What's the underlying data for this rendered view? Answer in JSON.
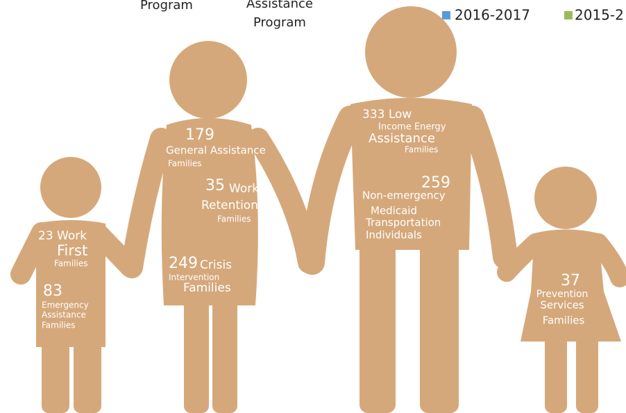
{
  "header": {
    "program_left": "Program",
    "program_right_line_1": "Assistance",
    "program_right_line_2": "Program"
  },
  "legend": [
    {
      "label": "2016-2017",
      "color": "#5b9bd5"
    },
    {
      "label": "2015-2",
      "color": "#9bbb59"
    }
  ],
  "figures": [
    {
      "labels": [
        "23 Work",
        "First",
        "Families",
        "83",
        "Emergency",
        "Assistance",
        "Families"
      ]
    },
    {
      "labels": [
        "179",
        "General Assistance",
        "Families",
        "35",
        "Work",
        "Retention",
        "Families",
        "249",
        "Crisis",
        "Intervention",
        "Families"
      ]
    },
    {
      "labels": [
        "333 Low",
        "Income Energy",
        "Assistance",
        "Families",
        "259",
        "Non-emergency",
        "Medicaid",
        "Transportation",
        "Individuals"
      ]
    },
    {
      "labels": [
        "37",
        "Prevention",
        "Services",
        "Families"
      ]
    }
  ]
}
